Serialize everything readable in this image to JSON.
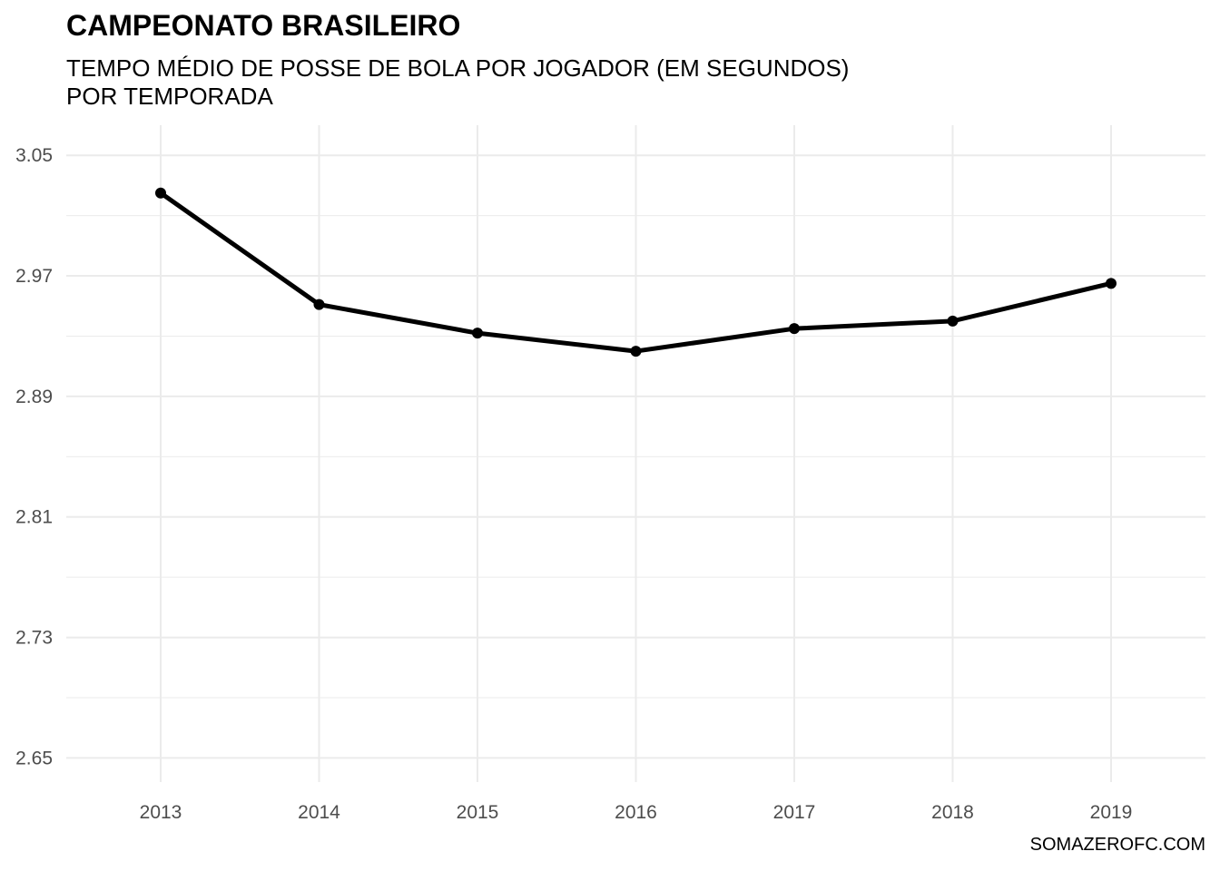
{
  "chart_data": {
    "type": "line",
    "title": "CAMPEONATO BRASILEIRO",
    "subtitle_lines": [
      "TEMPO MÉDIO DE POSSE DE BOLA POR JOGADOR (EM SEGUNDOS)",
      "POR TEMPORADA"
    ],
    "caption": "SOMAZEROFC.COM",
    "xlabel": "",
    "ylabel": "",
    "categories": [
      "2013",
      "2014",
      "2015",
      "2016",
      "2017",
      "2018",
      "2019"
    ],
    "series": [
      {
        "values": [
          3.025,
          2.951,
          2.932,
          2.92,
          2.935,
          2.94,
          2.965
        ]
      }
    ],
    "y_ticks": [
      "2.65",
      "2.73",
      "2.81",
      "2.89",
      "2.97",
      "3.05"
    ],
    "ylim": [
      2.634,
      3.07
    ],
    "grid": true,
    "legend": "none",
    "colors": {
      "line": "#000000",
      "grid": "#ebebeb",
      "tick_text": "#4d4d4d"
    }
  }
}
